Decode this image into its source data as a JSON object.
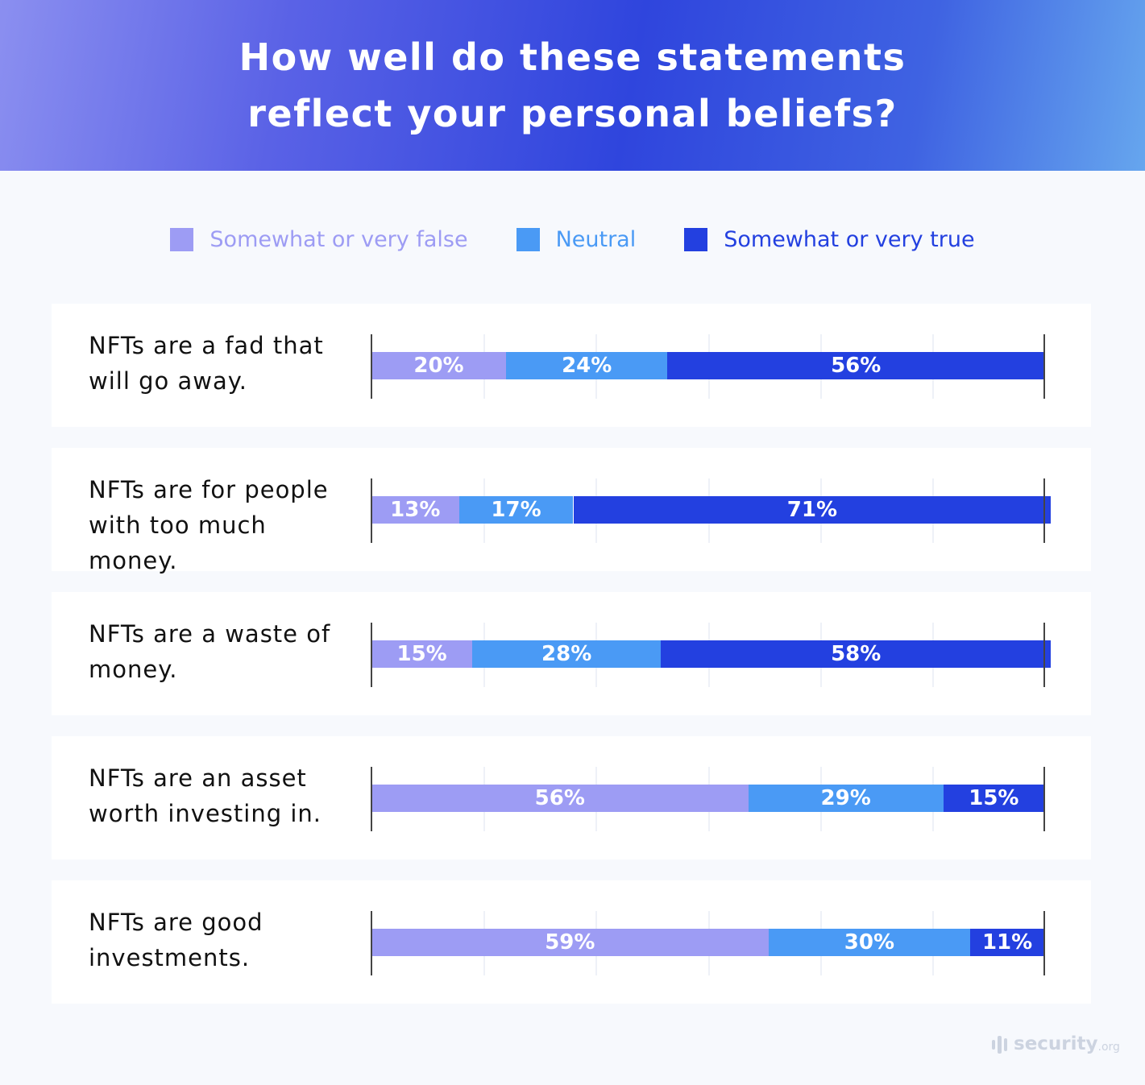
{
  "chart_data": {
    "type": "bar",
    "orientation": "horizontal",
    "stacked": true,
    "title": "How well do these statements reflect your personal beliefs?",
    "categories": [
      "NFTs are a fad that will go away.",
      "NFTs are for people with too much money.",
      "NFTs are a waste of money.",
      "NFTs are an asset worth investing in.",
      "NFTs are good investments."
    ],
    "series": [
      {
        "name": "Somewhat or very false",
        "color": "#9d9cf4",
        "values": [
          20,
          13,
          15,
          56,
          59
        ]
      },
      {
        "name": "Neutral",
        "color": "#4a9af5",
        "values": [
          24,
          17,
          28,
          29,
          30
        ]
      },
      {
        "name": "Somewhat or very true",
        "color": "#2340e0",
        "values": [
          56,
          71,
          58,
          15,
          11
        ]
      }
    ],
    "xlim": [
      0,
      100
    ],
    "grid": true,
    "legend_position": "top",
    "value_suffix": "%"
  },
  "brand": {
    "logo_text": "security",
    "logo_suffix": ".org"
  }
}
